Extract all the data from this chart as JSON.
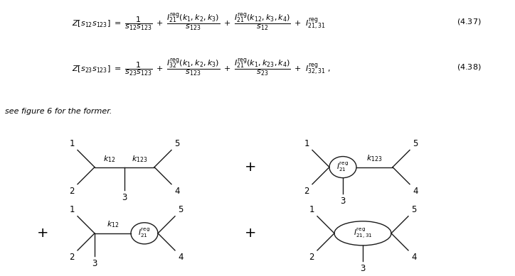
{
  "background_color": "#ffffff",
  "line_color": "#1a1a1a",
  "eq1_left": "Z[s_{12}s_{123}]",
  "eq1_eq": "=",
  "eq1_t1": "\\dfrac{1}{s_{12}s_{123}}",
  "eq1_t2": "\\dfrac{I_{21}^{\\mathrm{reg}}(k_1, k_2, k_3)}{s_{123}}",
  "eq1_t3": "\\dfrac{I_{21}^{\\mathrm{reg}}(k_{12}, k_3, k_4)}{s_{12}}",
  "eq1_t4": "I_{21,31}^{\\mathrm{reg}}",
  "eq1_num": "(4.37)",
  "eq2_left": "Z[s_{23}s_{123}]",
  "eq2_eq": "=",
  "eq2_t1": "\\dfrac{1}{s_{23}s_{123}}",
  "eq2_t2": "\\dfrac{I_{32}^{\\mathrm{reg}}(k_1, k_2, k_3)}{s_{123}}",
  "eq2_t3": "\\dfrac{I_{21}^{\\mathrm{reg}}(k_1, k_{23}, k_4)}{s_{23}}",
  "eq2_t4": "I_{32,31}^{\\mathrm{reg}}",
  "eq2_num": "(4.38)",
  "note": "see figure 6 for the former.",
  "diag1_k12": "k_{12}",
  "diag1_k123": "k_{123}",
  "diag2_blob": "I_{21}^{\\mathrm{reg}}",
  "diag2_k123": "k_{123}",
  "diag3_k12": "k_{12}",
  "diag3_blob": "I_{21}^{\\mathrm{reg}}",
  "diag4_blob": "I_{21,31}^{\\mathrm{reg}}"
}
